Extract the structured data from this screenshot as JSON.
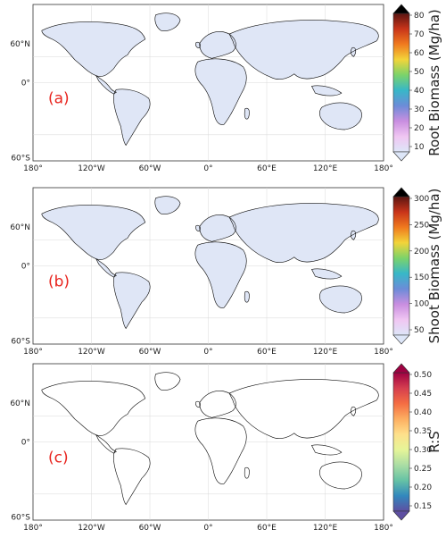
{
  "panels": [
    {
      "label": "(a)",
      "colorbar": {
        "title": "Root Biomass (Mg/ha)",
        "ticks": [
          "80",
          "70",
          "60",
          "50",
          "40",
          "30",
          "20",
          "10"
        ],
        "colors": [
          "#000000",
          "#5a1512",
          "#c8341a",
          "#f07a1e",
          "#f2d43a",
          "#7bd36a",
          "#38b7c8",
          "#6c8cd8",
          "#c98ee0",
          "#f0c6f2",
          "#dde6f8"
        ]
      },
      "lat_labels": [
        "60°N",
        "0°",
        "60°S"
      ],
      "lon_labels": [
        "180°",
        "120°W",
        "60°W",
        "0°",
        "60°E",
        "120°E",
        "180°"
      ]
    },
    {
      "label": "(b)",
      "colorbar": {
        "title": "Shoot Biomass (Mg/ha)",
        "ticks": [
          "300",
          "250",
          "200",
          "150",
          "100",
          "50"
        ],
        "colors": [
          "#000000",
          "#5a1512",
          "#c8341a",
          "#f07a1e",
          "#f2d43a",
          "#7bd36a",
          "#38b7c8",
          "#6c8cd8",
          "#c98ee0",
          "#f0c6f2",
          "#dde6f8"
        ]
      },
      "lat_labels": [
        "60°N",
        "0°",
        "60°S"
      ],
      "lon_labels": [
        "180°",
        "120°W",
        "60°W",
        "0°",
        "60°E",
        "120°E",
        "180°"
      ]
    },
    {
      "label": "(c)",
      "colorbar": {
        "title": "R:S",
        "ticks": [
          "0.50",
          "0.45",
          "0.40",
          "0.35",
          "0.30",
          "0.25",
          "0.20",
          "0.15"
        ],
        "colors": [
          "#9e0142",
          "#d53e4f",
          "#f46d43",
          "#fdae61",
          "#fee08b",
          "#e6f598",
          "#abdda4",
          "#66c2a5",
          "#3288bd",
          "#5e4fa2"
        ]
      },
      "lat_labels": [
        "60°N",
        "0°",
        "60°S"
      ],
      "lon_labels": [
        "180°",
        "120°W",
        "60°W",
        "0°",
        "60°E",
        "120°E",
        "180°"
      ]
    }
  ]
}
